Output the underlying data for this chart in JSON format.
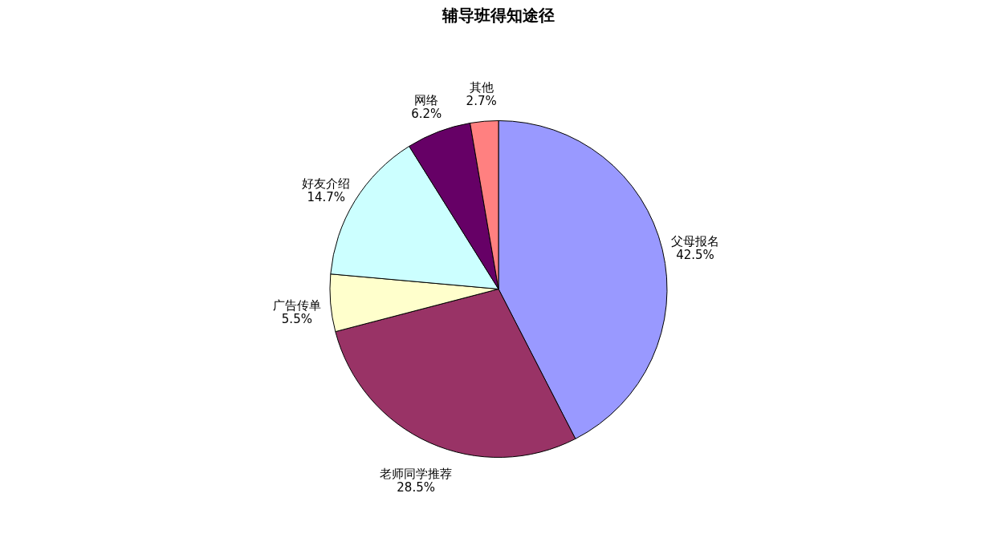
{
  "chart_data": {
    "type": "pie",
    "title": "辅导班得知途径",
    "categories": [
      "父母报名",
      "老师同学推荐",
      "广告传单",
      "好友介绍",
      "网络",
      "其他"
    ],
    "values": [
      42.5,
      28.5,
      5.5,
      14.7,
      6.2,
      2.7
    ],
    "value_labels": [
      "42.5%",
      "28.5%",
      "5.5%",
      "14.7%",
      "6.2%",
      "2.7%"
    ],
    "colors": [
      "#9999ff",
      "#993366",
      "#ffffcc",
      "#ccffff",
      "#660066",
      "#ff8080"
    ]
  }
}
